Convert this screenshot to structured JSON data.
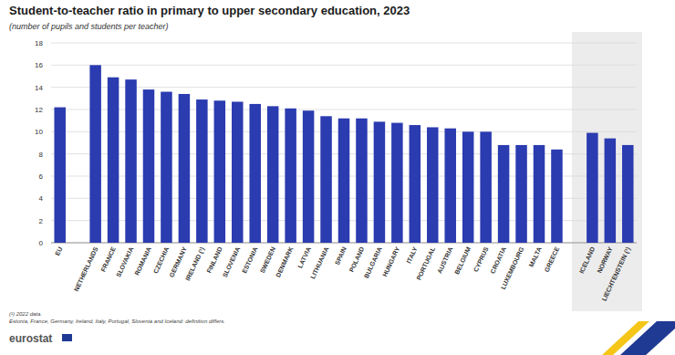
{
  "chart_data": {
    "type": "bar",
    "title": "Student-to-teacher ratio in primary to upper secondary education, 2023",
    "subtitle": "(number of pupils and students per teacher)",
    "categories": [
      "EU",
      null,
      "NETHERLANDS",
      "FRANCE",
      "SLOVAKIA",
      "ROMANIA",
      "CZECHIA",
      "GERMANY",
      "IRELAND (¹)",
      "FINLAND",
      "SLOVENIA",
      "ESTONIA",
      "SWEDEN",
      "DENMARK",
      "LATVIA",
      "LITHUANIA",
      "SPAIN",
      "POLAND",
      "BULGARIA",
      "HUNGARY",
      "ITALY",
      "PORTUGAL",
      "AUSTRIA",
      "BELGIUM",
      "CYPRUS",
      "CROATIA",
      "LUXEMBOURG",
      "MALTA",
      "GREECE",
      null,
      "ICELAND",
      "NORWAY",
      "LIECHTENSTEIN (¹)"
    ],
    "values": [
      12.2,
      null,
      16.0,
      14.9,
      14.7,
      13.8,
      13.6,
      13.4,
      12.9,
      12.8,
      12.7,
      12.5,
      12.3,
      12.1,
      11.9,
      11.4,
      11.2,
      11.2,
      10.9,
      10.8,
      10.6,
      10.4,
      10.3,
      10.0,
      10.0,
      8.8,
      8.8,
      8.8,
      8.4,
      null,
      9.9,
      9.4,
      8.8
    ],
    "color": "#2b3bb0",
    "ylim": [
      0,
      18
    ],
    "yticks": [
      0,
      2,
      4,
      6,
      8,
      10,
      12,
      14,
      16,
      18
    ],
    "grid": true,
    "annotations": [
      "(¹) 2022 data.",
      "Estonia, France, Germany, Ireland, Italy, Portugal, Slovenia and Iceland: definition differs."
    ],
    "source": "eurostat"
  }
}
